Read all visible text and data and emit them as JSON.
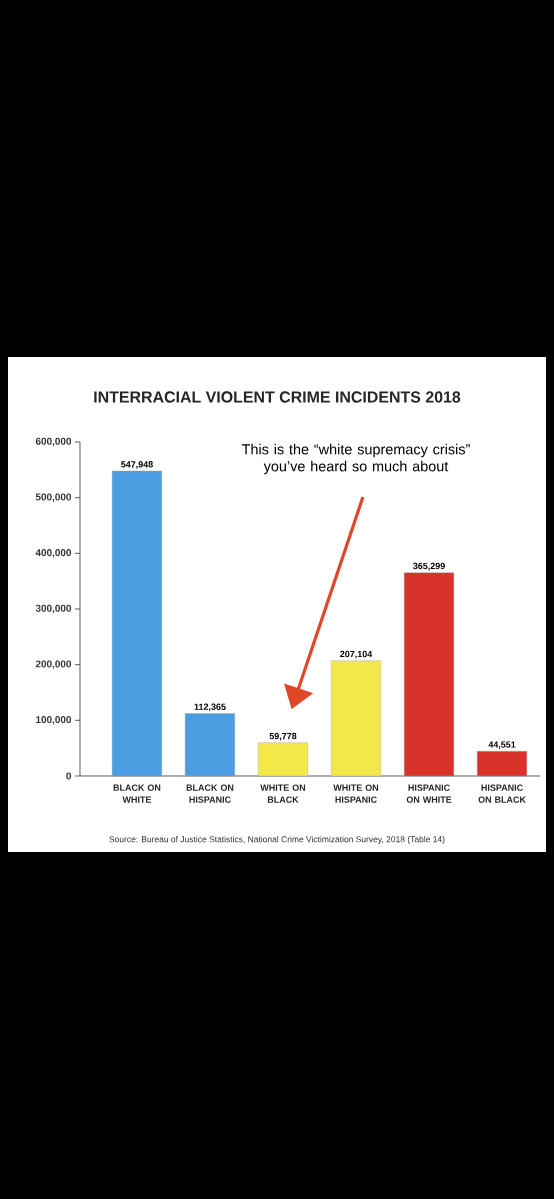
{
  "chart_data": {
    "type": "bar",
    "title": "INTERRACIAL VIOLENT CRIME INCIDENTS 2018",
    "categories": [
      "BLACK ON WHITE",
      "BLACK ON HISPANIC",
      "WHITE ON BLACK",
      "WHITE ON HISPANIC",
      "HISPANIC ON WHITE",
      "HISPANIC ON BLACK"
    ],
    "values": [
      547948,
      112365,
      59778,
      207104,
      365299,
      44551
    ],
    "colors": [
      "#4a9de0",
      "#4a9de0",
      "#f3e84a",
      "#f3e84a",
      "#d8322b",
      "#d8322b"
    ],
    "value_labels": [
      "547,948",
      "112,365",
      "59,778",
      "207,104",
      "365,299",
      "44,551"
    ],
    "ylim": [
      0,
      600000
    ],
    "yticks": [
      0,
      {
        "value": 100000,
        "label": "100,000"
      },
      {
        "value": 200000,
        "label": "200,000"
      },
      {
        "value": 300000,
        "label": "300,000"
      },
      {
        "value": 400000,
        "label": "400,000"
      },
      {
        "value": 500000,
        "label": "500,000"
      },
      {
        "value": 600000,
        "label": "600,000"
      }
    ],
    "annotations": [
      "This is the “white supremacy crisis” you’ve heard so much about",
      "Source: Bureau of Justice Statistics, National Crime Victimization Survey, 2018 (Table 14)"
    ]
  }
}
